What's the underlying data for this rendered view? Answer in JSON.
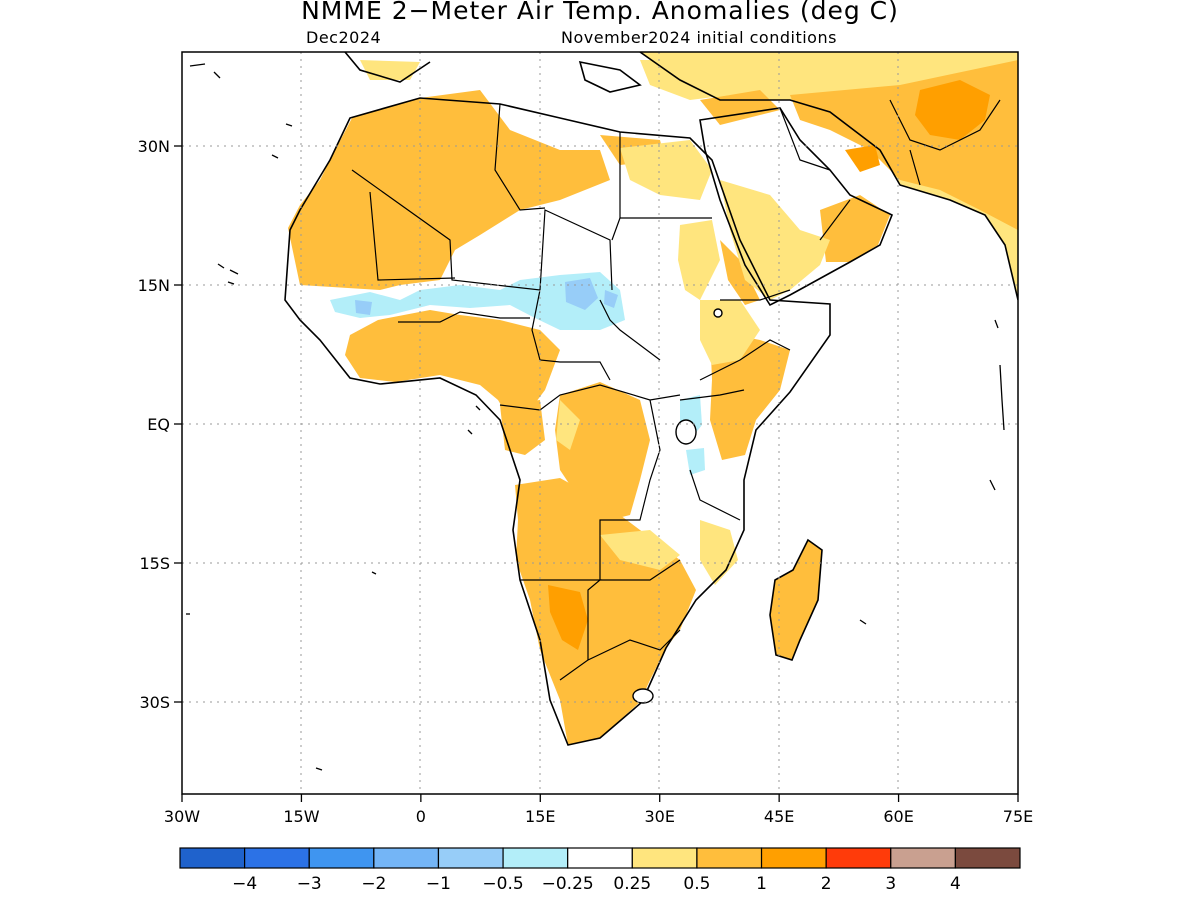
{
  "title": "NMME 2−Meter Air Temp. Anomalies (deg C)",
  "subtitle_left": "Dec2024",
  "subtitle_right": "November2024 initial conditions",
  "map": {
    "lon_range": [
      -30,
      75
    ],
    "lat_range": [
      -40,
      40
    ],
    "lon_ticks": [
      "30W",
      "15W",
      "0",
      "15E",
      "30E",
      "45E",
      "60E",
      "75E"
    ],
    "lat_ticks": [
      "30N",
      "15N",
      "EQ",
      "15S",
      "30S"
    ],
    "grid": "dotted"
  },
  "legend": {
    "colors": [
      "#1f62cc",
      "#2c72e6",
      "#3f95f0",
      "#74b5f6",
      "#97cdf8",
      "#b3eef9",
      "#ffffff",
      "#ffe57e",
      "#ffbe3c",
      "#ff9f00",
      "#ff3b0a",
      "#c9a090",
      "#7b4a3e"
    ],
    "labels": [
      "−4",
      "−3",
      "−2",
      "−1",
      "−0.5",
      "−0.25",
      "0.25",
      "0.5",
      "1",
      "2",
      "3",
      "4"
    ]
  },
  "colors": {
    "frame": "#000000",
    "land_outline": "#000000",
    "grid": "#999999"
  }
}
